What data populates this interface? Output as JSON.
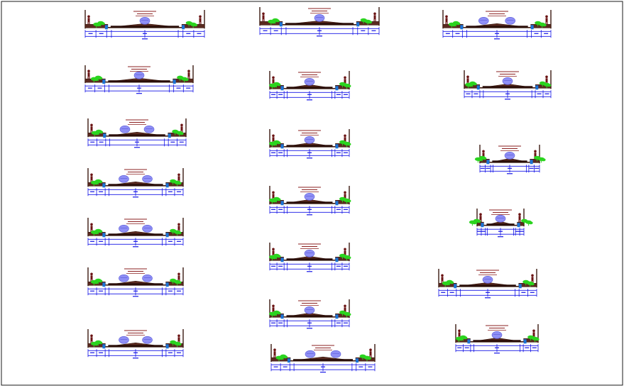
{
  "drawing": {
    "type": "road cross-section sheet",
    "colors": {
      "border": "#1a1a1a",
      "dimension": "#1414e6",
      "road_section": "#3a1a10",
      "road_fill": "#5a2a20",
      "trees": "#2bd41f",
      "vehicle": "#8f8ff5",
      "figure": "#6b1414",
      "title_text": "#8b2020",
      "drain": "#1b73d6"
    },
    "icons": [
      "tree-icon",
      "vehicle-icon",
      "pedestrian-icon",
      "drain-icon"
    ],
    "sections": [
      {
        "id": "s1",
        "column": 1,
        "row": 1,
        "vehicles": 1
      },
      {
        "id": "s2",
        "column": 1,
        "row": 2,
        "vehicles": 1
      },
      {
        "id": "s3",
        "column": 1,
        "row": 3,
        "vehicles": 2
      },
      {
        "id": "s4",
        "column": 1,
        "row": 4,
        "vehicles": 2
      },
      {
        "id": "s5",
        "column": 1,
        "row": 5,
        "vehicles": 2
      },
      {
        "id": "s6",
        "column": 1,
        "row": 6,
        "vehicles": 2
      },
      {
        "id": "s7",
        "column": 1,
        "row": 7,
        "vehicles": 2
      },
      {
        "id": "s8",
        "column": 2,
        "row": 1,
        "vehicles": 1
      },
      {
        "id": "s9",
        "column": 2,
        "row": 2,
        "vehicles": 1
      },
      {
        "id": "s10",
        "column": 2,
        "row": 3,
        "vehicles": 1
      },
      {
        "id": "s11",
        "column": 2,
        "row": 4,
        "vehicles": 1
      },
      {
        "id": "s12",
        "column": 2,
        "row": 5,
        "vehicles": 1
      },
      {
        "id": "s13",
        "column": 2,
        "row": 6,
        "vehicles": 1
      },
      {
        "id": "s14",
        "column": 2,
        "row": 7,
        "vehicles": 2
      },
      {
        "id": "s15",
        "column": 3,
        "row": 1,
        "vehicles": 2
      },
      {
        "id": "s16",
        "column": 3,
        "row": 2,
        "vehicles": 1
      },
      {
        "id": "s17",
        "column": 3,
        "row": 3,
        "vehicles": 1
      },
      {
        "id": "s18",
        "column": 3,
        "row": 4,
        "vehicles": 1
      },
      {
        "id": "s19",
        "column": 3,
        "row": 5,
        "vehicles": 1
      },
      {
        "id": "s20",
        "column": 3,
        "row": 6,
        "vehicles": 1
      }
    ]
  }
}
